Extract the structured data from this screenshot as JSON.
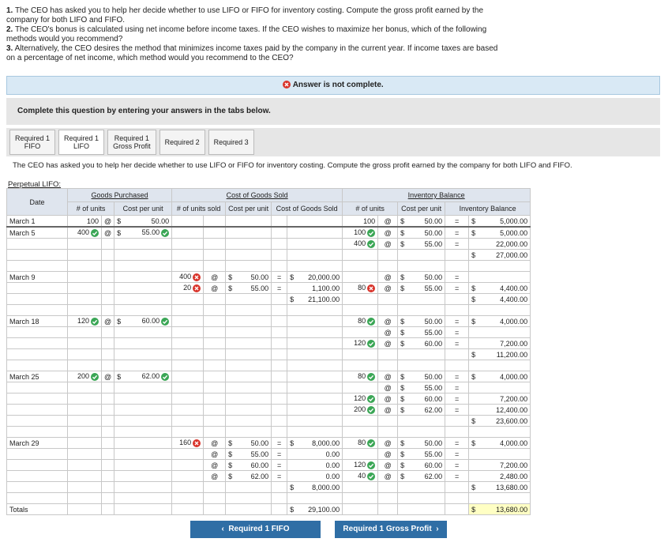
{
  "instructions": [
    {
      "num": "1.",
      "text": "The CEO has asked you to help her decide whether to use LIFO or FIFO for inventory costing. Compute the gross profit earned by the company for both LIFO and FIFO."
    },
    {
      "num": "2.",
      "text": "The CEO's bonus is calculated using net income before income taxes. If the CEO wishes to maximize her bonus, which of the following methods would you recommend?"
    },
    {
      "num": "3.",
      "text": "Alternatively, the CEO desires the method that minimizes income taxes paid by the company in the current year. If income taxes are based on a percentage of net income, which method would you recommend to the CEO?"
    }
  ],
  "banner": "Answer is not complete.",
  "prompt": "Complete this question by entering your answers in the tabs below.",
  "tabs": [
    [
      "Required 1",
      "FIFO"
    ],
    [
      "Required 1",
      "LIFO"
    ],
    [
      "Required 1",
      "Gross Profit"
    ],
    [
      "Required 2"
    ],
    [
      "Required 3"
    ]
  ],
  "question": "The CEO has asked you to help her decide whether to use LIFO or FIFO for inventory costing. Compute the gross profit earned by the company for both LIFO and FIFO.",
  "table": {
    "caption": "Perpetual LIFO:",
    "groups": [
      "Goods Purchased",
      "Cost of Goods Sold",
      "Inventory Balance"
    ],
    "headers": {
      "date": "Date",
      "pu": "# of units",
      "pc": "Cost per unit",
      "su": "# of units sold",
      "sc": "Cost per unit",
      "cogs": "Cost of Goods Sold",
      "iu": "# of units",
      "ic": "Cost per unit",
      "bal": "Inventory Balance"
    },
    "symbols": {
      "at": "@",
      "dollar": "$",
      "eq": "="
    },
    "blocks": [
      {
        "date": "March 1",
        "lines": [
          {
            "pu": "100",
            "pc": "50.00",
            "iu": "100",
            "ic": "50.00",
            "bal": "5,000.00",
            "cur": [
              "bal"
            ]
          }
        ]
      },
      {
        "date": "March 5",
        "lines": [
          {
            "pu": "400",
            "pc": "55.00",
            "iu": "100",
            "ic": "50.00",
            "bal": "5,000.00",
            "cur": [
              "bal"
            ],
            "ok": [
              "pu",
              "pc",
              "iu"
            ]
          },
          {
            "iu": "400",
            "ic": "55.00",
            "bal": "22,000.00",
            "ok": [
              "iu"
            ]
          },
          {
            "bal": "27,000.00",
            "cur": [
              "bal"
            ]
          },
          {}
        ]
      },
      {
        "date": "March 9",
        "lines": [
          {
            "su": "400",
            "sc": "50.00",
            "cogs": "20,000.00",
            "ic": "50.00",
            "cur": [
              "cogs"
            ],
            "bad": [
              "su"
            ]
          },
          {
            "su": "20",
            "sc": "55.00",
            "cogs": "1,100.00",
            "iu": "80",
            "ic": "55.00",
            "bal": "4,400.00",
            "cur": [
              "bal"
            ],
            "bad": [
              "su",
              "iu"
            ]
          },
          {
            "cogs": "21,100.00",
            "bal": "4,400.00",
            "cur": [
              "cogs",
              "bal"
            ]
          },
          {}
        ]
      },
      {
        "date": "March 18",
        "lines": [
          {
            "pu": "120",
            "pc": "60.00",
            "iu": "80",
            "ic": "50.00",
            "bal": "4,000.00",
            "cur": [
              "bal"
            ],
            "ok": [
              "pu",
              "pc",
              "iu"
            ]
          },
          {
            "ic": "55.00"
          },
          {
            "iu": "120",
            "ic": "60.00",
            "bal": "7,200.00",
            "ok": [
              "iu"
            ]
          },
          {
            "bal": "11,200.00",
            "cur": [
              "bal"
            ]
          },
          {}
        ]
      },
      {
        "date": "March 25",
        "lines": [
          {
            "pu": "200",
            "pc": "62.00",
            "iu": "80",
            "ic": "50.00",
            "bal": "4,000.00",
            "cur": [
              "bal"
            ],
            "ok": [
              "pu",
              "pc",
              "iu"
            ]
          },
          {
            "ic": "55.00"
          },
          {
            "iu": "120",
            "ic": "60.00",
            "bal": "7,200.00",
            "ok": [
              "iu"
            ]
          },
          {
            "iu": "200",
            "ic": "62.00",
            "bal": "12,400.00",
            "ok": [
              "iu"
            ]
          },
          {
            "bal": "23,600.00",
            "cur": [
              "bal"
            ]
          },
          {}
        ]
      },
      {
        "date": "March 29",
        "lines": [
          {
            "su": "160",
            "sc": "50.00",
            "cogs": "8,000.00",
            "iu": "80",
            "ic": "50.00",
            "bal": "4,000.00",
            "cur": [
              "cogs",
              "bal"
            ],
            "bad": [
              "su"
            ],
            "ok": [
              "iu"
            ]
          },
          {
            "sc": "55.00",
            "cogs": "0.00",
            "ic": "55.00"
          },
          {
            "sc": "60.00",
            "cogs": "0.00",
            "iu": "120",
            "ic": "60.00",
            "bal": "7,200.00",
            "ok": [
              "iu"
            ]
          },
          {
            "sc": "62.00",
            "cogs": "0.00",
            "iu": "40",
            "ic": "62.00",
            "bal": "2,480.00",
            "ok": [
              "iu"
            ]
          },
          {
            "cogs": "8,000.00",
            "bal": "13,680.00",
            "cur": [
              "cogs",
              "bal"
            ]
          },
          {}
        ]
      },
      {
        "date": "Totals",
        "lines": [
          {
            "cogs": "29,100.00",
            "bal": "13,680.00",
            "cur": [
              "cogs",
              "bal"
            ],
            "hl": [
              "bal"
            ]
          }
        ]
      }
    ]
  },
  "buttons": {
    "prev": "Required 1 FIFO",
    "next": "Required 1 Gross Profit"
  }
}
